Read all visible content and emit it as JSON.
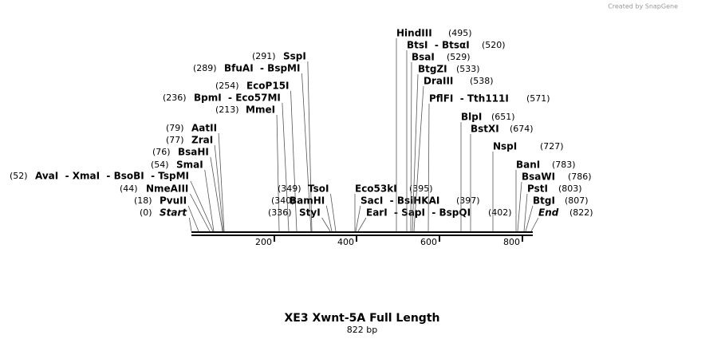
{
  "credit": "Created by SnapGene",
  "title": "XE3 Xwnt-5A Full Length",
  "subtitle": "822 bp",
  "ruler": {
    "ticks": [
      "200",
      "400",
      "600",
      "800"
    ]
  },
  "sites": [
    {
      "position": "(0)",
      "label": "Start"
    },
    {
      "position": "(18)",
      "label": "PvuII"
    },
    {
      "position": "(44)",
      "label": "NmeAIII"
    },
    {
      "position": "(52)",
      "label": "AvaI  - XmaI  - BsoBI  - TspMI"
    },
    {
      "position": "(54)",
      "label": "SmaI"
    },
    {
      "position": "(76)",
      "label": "BsaHI"
    },
    {
      "position": "(77)",
      "label": "ZraI"
    },
    {
      "position": "(79)",
      "label": "AatII"
    },
    {
      "position": "(213)",
      "label": "MmeI"
    },
    {
      "position": "(236)",
      "label": "BpmI  - Eco57MI"
    },
    {
      "position": "(254)",
      "label": "EcoP15I"
    },
    {
      "position": "(289)",
      "label": "BfuAI  - BspMI"
    },
    {
      "position": "(291)",
      "label": "SspI"
    },
    {
      "position": "(336)",
      "label": "StyI"
    },
    {
      "position": "(340)",
      "label": "BamHI"
    },
    {
      "position": "(349)",
      "label": "TsoI"
    },
    {
      "position": "(395)",
      "label": "Eco53kI"
    },
    {
      "position": "(397)",
      "label": "SacI  - BsiHKAI"
    },
    {
      "position": "(402)",
      "label": "EarI  - SapI  - BspQI"
    },
    {
      "position": "(495)",
      "label": "HindIII"
    },
    {
      "position": "(520)",
      "label": "BtsI  - BtsαI"
    },
    {
      "position": "(529)",
      "label": "BsaI"
    },
    {
      "position": "(533)",
      "label": "BtgZI"
    },
    {
      "position": "(538)",
      "label": "DraIII"
    },
    {
      "position": "(571)",
      "label": "PflFI  - Tth111I"
    },
    {
      "position": "(651)",
      "label": "BlpI"
    },
    {
      "position": "(674)",
      "label": "BstXI"
    },
    {
      "position": "(727)",
      "label": "NspI"
    },
    {
      "position": "(783)",
      "label": "BanI"
    },
    {
      "position": "(786)",
      "label": "BsaWI"
    },
    {
      "position": "(803)",
      "label": "PstI"
    },
    {
      "position": "(807)",
      "label": "BtgI"
    },
    {
      "position": "(822)",
      "label": "End"
    }
  ]
}
